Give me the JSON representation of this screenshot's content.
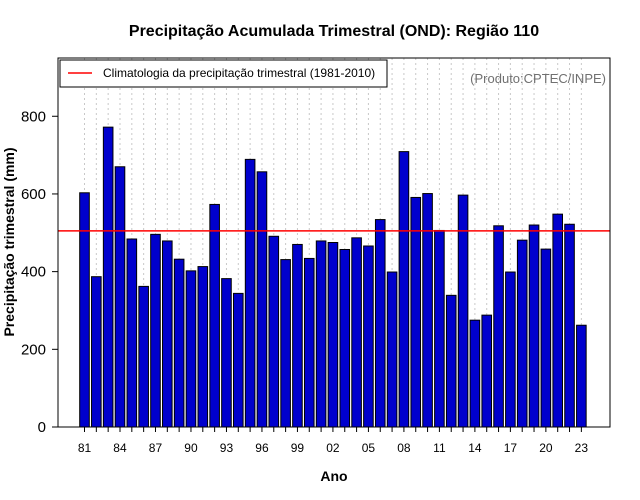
{
  "chart_data": {
    "type": "bar",
    "title": "Precipitação Acumulada Trimestral (OND): Região 110",
    "xlabel": "Ano",
    "ylabel": "Precipitação trimestral (mm)",
    "ylim": [
      0,
      950
    ],
    "yticks": [
      0,
      200,
      400,
      600,
      800
    ],
    "x": [
      1981,
      1982,
      1983,
      1984,
      1985,
      1986,
      1987,
      1988,
      1989,
      1990,
      1991,
      1992,
      1993,
      1994,
      1995,
      1996,
      1997,
      1998,
      1999,
      2000,
      2001,
      2002,
      2003,
      2004,
      2005,
      2006,
      2007,
      2008,
      2009,
      2010,
      2011,
      2012,
      2013,
      2014,
      2015,
      2016,
      2017,
      2018,
      2019,
      2020,
      2021,
      2022,
      2023
    ],
    "values": [
      603,
      387,
      772,
      670,
      484,
      362,
      496,
      479,
      432,
      402,
      413,
      573,
      382,
      344,
      689,
      657,
      491,
      431,
      470,
      434,
      479,
      475,
      457,
      487,
      466,
      534,
      399,
      709,
      591,
      601,
      506,
      339,
      597,
      275,
      288,
      518,
      399,
      481,
      520,
      458,
      548,
      522,
      262
    ],
    "tick_labels": [
      "81",
      "84",
      "87",
      "90",
      "93",
      "96",
      "99",
      "02",
      "05",
      "08",
      "11",
      "14",
      "17",
      "20",
      "23"
    ],
    "tick_years": [
      1981,
      1984,
      1987,
      1990,
      1993,
      1996,
      1999,
      2002,
      2005,
      2008,
      2011,
      2014,
      2017,
      2020,
      2023
    ],
    "climatology": 505,
    "legend": {
      "position": "top-left",
      "entries": [
        {
          "label": "Climatologia da precipitação trimestral (1981-2010)",
          "color": "#ff0000"
        }
      ]
    },
    "source_note": "(Produto:CPTEC/INPE)",
    "bar_color": "#0000cd",
    "grid": "vertical dotted"
  }
}
